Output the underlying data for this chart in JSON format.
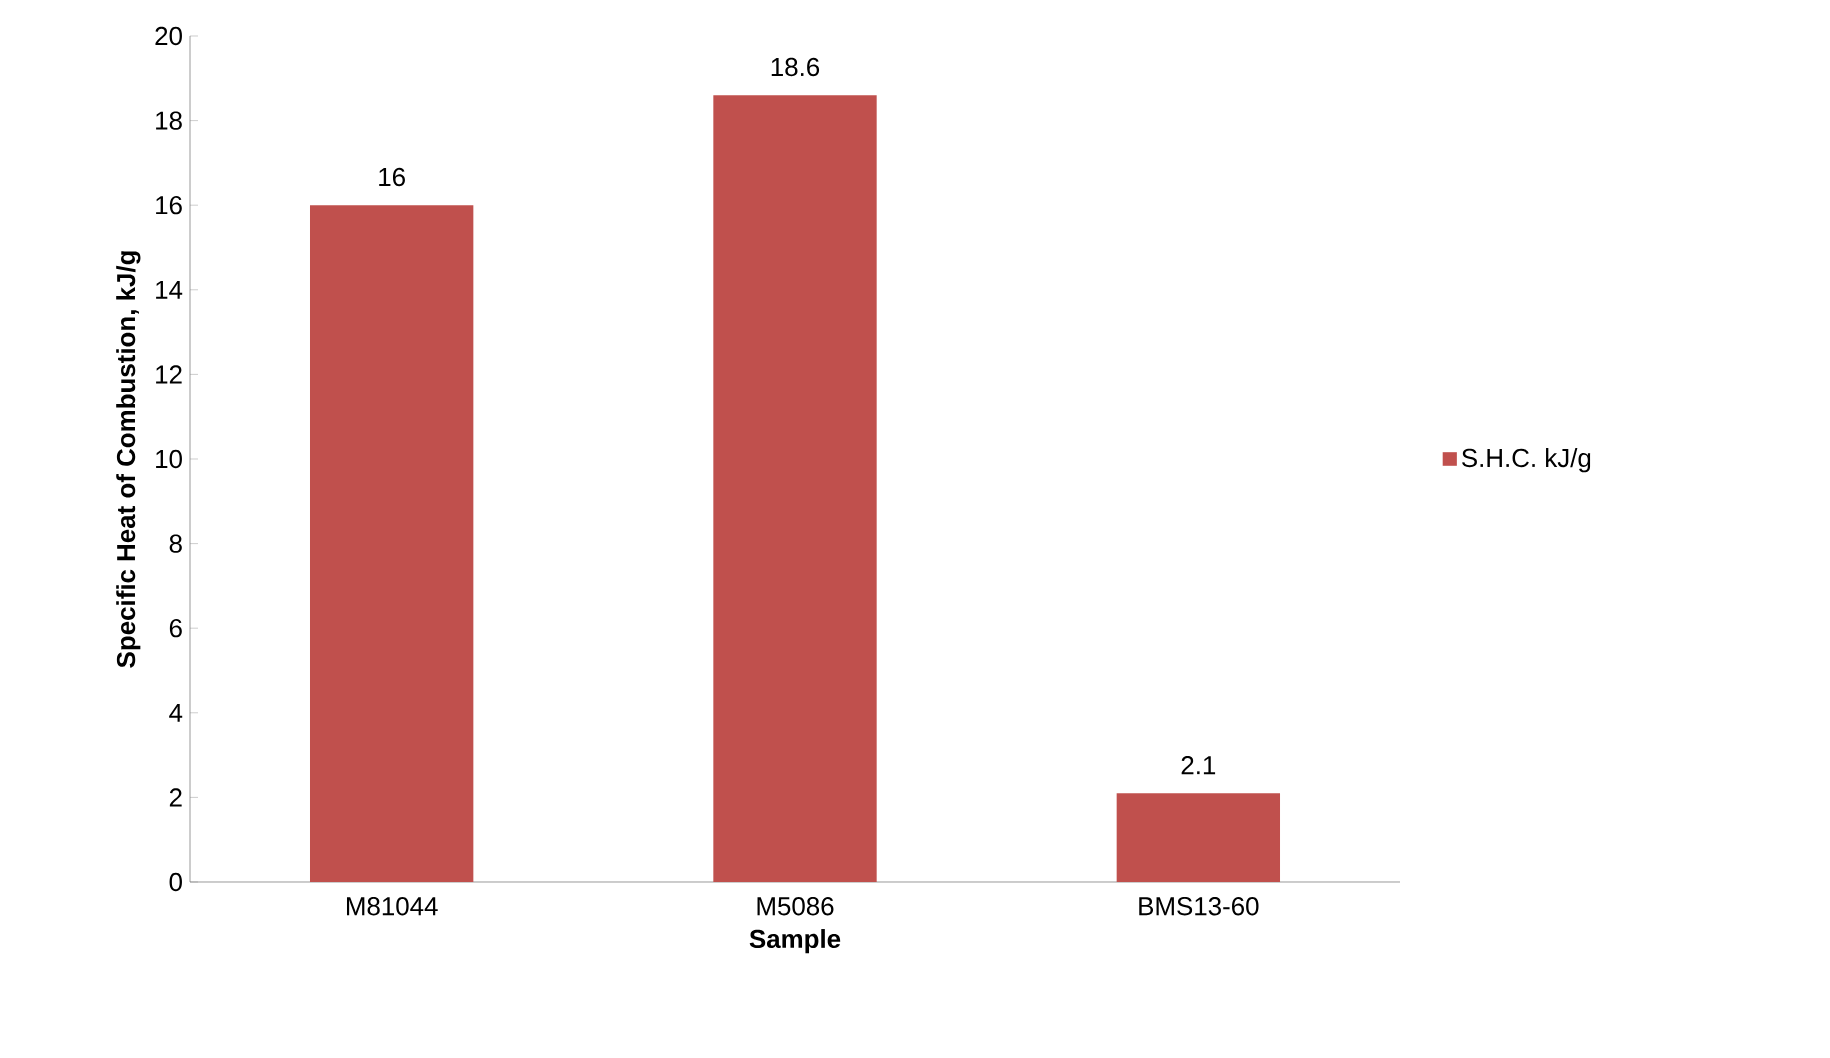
{
  "chart_data": {
    "type": "bar",
    "xlabel": "Sample",
    "ylabel": "Specific Heat of Combustion, kJ/g",
    "categories": [
      "M81044",
      "M5086",
      "BMS13-60"
    ],
    "series": [
      {
        "name": "S.H.C. kJ/g",
        "color": "#c0504d",
        "values": [
          16,
          18.6,
          2.1
        ]
      }
    ],
    "ylim": [
      0,
      20
    ],
    "yticks": [
      0,
      2,
      4,
      6,
      8,
      10,
      12,
      14,
      16,
      18,
      20
    ],
    "data_labels": true,
    "grid": false,
    "legend": "right"
  }
}
